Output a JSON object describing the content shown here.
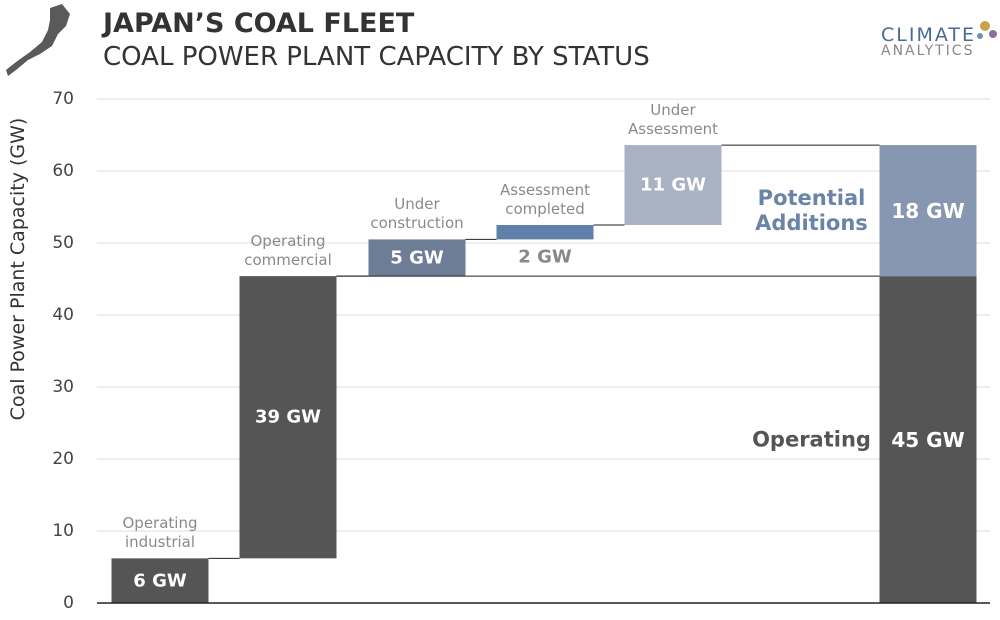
{
  "chart_data": {
    "type": "waterfall",
    "title": "JAPAN’S COAL FLEET",
    "subtitle": "COAL POWER PLANT CAPACITY BY STATUS",
    "logo": [
      "CLIMATE",
      "ANALYTICS"
    ],
    "y_label": "Coal Power Plant Capacity (GW)",
    "categories": [
      "Operating industrial",
      "Operating commercial",
      "Under construction",
      "Assessment completed",
      "Under Assessment"
    ],
    "values": [
      6.2,
      39.2,
      5.1,
      2.0,
      11.1
    ],
    "value_labels": [
      "6 GW",
      "39 GW",
      "5 GW",
      "2 GW",
      "11 GW"
    ],
    "colors": [
      "#555555",
      "#555555",
      "#6d7d96",
      "#5f80aa",
      "#a8b2c3"
    ],
    "totals": [
      {
        "name": "Operating",
        "value": 45.4,
        "value_label": "45 GW",
        "color": "#555555"
      },
      {
        "name": "Potential Additions",
        "value": 18.2,
        "value_label": "18 GW",
        "color": "#8797b1"
      }
    ],
    "ylim": [
      0,
      70
    ],
    "yticks": [
      0,
      10,
      20,
      30,
      40,
      50,
      60,
      70
    ],
    "grid": true
  }
}
